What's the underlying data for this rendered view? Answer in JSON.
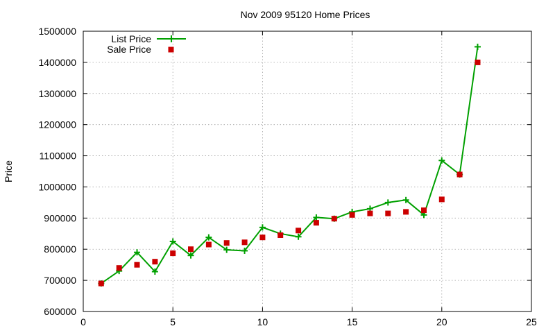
{
  "chart_data": {
    "type": "line",
    "title": "Nov 2009 95120 Home Prices",
    "xlabel": "",
    "ylabel": "Price",
    "xlim": [
      0,
      25
    ],
    "ylim": [
      600000,
      1500000
    ],
    "x_ticks": [
      0,
      5,
      10,
      15,
      20,
      25
    ],
    "y_ticks": [
      600000,
      700000,
      800000,
      900000,
      1000000,
      1100000,
      1200000,
      1300000,
      1400000,
      1500000
    ],
    "grid": true,
    "legend_position": "top-left",
    "series": [
      {
        "name": "List Price",
        "style": "line with plus markers",
        "color": "#00a000",
        "x": [
          1,
          2,
          3,
          4,
          5,
          6,
          7,
          8,
          9,
          10,
          11,
          12,
          13,
          14,
          15,
          16,
          17,
          18,
          19,
          20,
          21,
          22
        ],
        "values": [
          690000,
          730000,
          790000,
          728000,
          825000,
          780000,
          838000,
          798000,
          795000,
          870000,
          850000,
          840000,
          902000,
          898000,
          920000,
          930000,
          950000,
          958000,
          910000,
          1085000,
          1040000,
          1450000
        ]
      },
      {
        "name": "Sale Price",
        "style": "square markers",
        "color": "#cc0000",
        "x": [
          1,
          2,
          3,
          4,
          5,
          6,
          7,
          8,
          9,
          10,
          11,
          12,
          13,
          14,
          15,
          16,
          17,
          18,
          19,
          20,
          21,
          22
        ],
        "values": [
          690000,
          740000,
          750000,
          760000,
          787000,
          800000,
          815000,
          820000,
          822000,
          838000,
          845000,
          860000,
          885000,
          898000,
          910000,
          915000,
          915000,
          920000,
          925000,
          960000,
          1040000,
          1400000
        ]
      }
    ]
  }
}
